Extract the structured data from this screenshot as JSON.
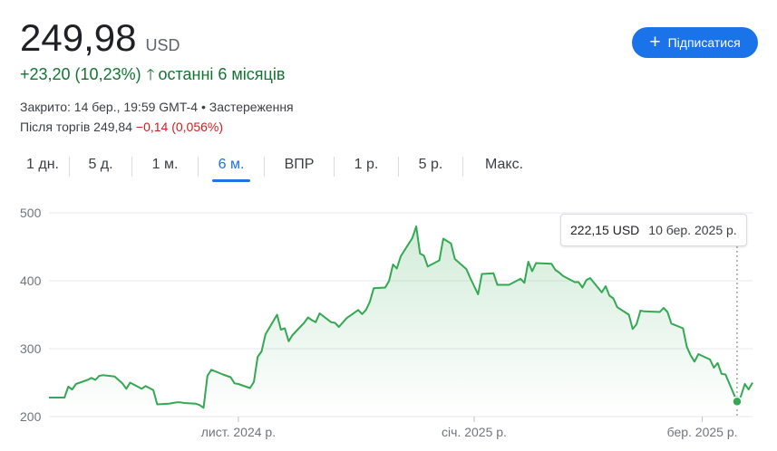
{
  "quote": {
    "price": "249,98",
    "currency": "USD",
    "change": "+23,20 (10,23%)",
    "period": "останні 6 місяців",
    "closed": "Закрито: 14 бер., 19:59 GMT-4 • Застереження",
    "after_hours_label": "Після торгів 249,84",
    "after_hours_change": "−0,14 (0,056%)"
  },
  "subscribe": {
    "label": "Підписатися",
    "icon": "plus-icon"
  },
  "tabs": [
    {
      "label": "1 дн.",
      "active": false
    },
    {
      "label": "5 д.",
      "active": false
    },
    {
      "label": "1 м.",
      "active": false
    },
    {
      "label": "6 м.",
      "active": true
    },
    {
      "label": "ВПР",
      "active": false
    },
    {
      "label": "1 р.",
      "active": false
    },
    {
      "label": "5 р.",
      "active": false
    },
    {
      "label": "Макс.",
      "active": false
    }
  ],
  "tooltip": {
    "price": "222,15 USD",
    "date": "10 бер. 2025 р."
  },
  "colors": {
    "positive": "#137333",
    "negative": "#c5221f",
    "line": "#34a853",
    "accent": "#1a73e8"
  },
  "chart_data": {
    "type": "area",
    "x_start": "2024-09-13",
    "x_end": "2025-03-14",
    "x_ticks": [
      {
        "date": "2024-11-01",
        "label": "лист. 2024 р."
      },
      {
        "date": "2025-01-01",
        "label": "січ. 2025 р."
      },
      {
        "date": "2025-03-01",
        "label": "бер. 2025 р."
      }
    ],
    "y_ticks": [
      200,
      300,
      400,
      500
    ],
    "ylim": [
      200,
      520
    ],
    "grid": true,
    "highlight": {
      "date": "2025-03-10",
      "value": 222.15
    },
    "series": [
      {
        "points": [
          [
            "2024-09-13",
            228
          ],
          [
            "2024-09-16",
            228
          ],
          [
            "2024-09-17",
            228
          ],
          [
            "2024-09-18",
            244
          ],
          [
            "2024-09-19",
            240
          ],
          [
            "2024-09-20",
            248
          ],
          [
            "2024-09-23",
            254
          ],
          [
            "2024-09-24",
            257
          ],
          [
            "2024-09-25",
            254
          ],
          [
            "2024-09-26",
            260
          ],
          [
            "2024-09-27",
            261
          ],
          [
            "2024-09-30",
            259
          ],
          [
            "2024-10-01",
            254
          ],
          [
            "2024-10-02",
            249
          ],
          [
            "2024-10-03",
            241
          ],
          [
            "2024-10-04",
            250
          ],
          [
            "2024-10-07",
            241
          ],
          [
            "2024-10-08",
            245
          ],
          [
            "2024-10-09",
            242
          ],
          [
            "2024-10-10",
            239
          ],
          [
            "2024-10-11",
            218
          ],
          [
            "2024-10-14",
            219
          ],
          [
            "2024-10-15",
            220
          ],
          [
            "2024-10-16",
            221
          ],
          [
            "2024-10-17",
            221
          ],
          [
            "2024-10-18",
            220
          ],
          [
            "2024-10-21",
            219
          ],
          [
            "2024-10-22",
            217
          ],
          [
            "2024-10-23",
            213
          ],
          [
            "2024-10-24",
            260
          ],
          [
            "2024-10-25",
            269
          ],
          [
            "2024-10-28",
            262
          ],
          [
            "2024-10-29",
            260
          ],
          [
            "2024-10-30",
            258
          ],
          [
            "2024-10-31",
            249
          ],
          [
            "2024-11-01",
            248
          ],
          [
            "2024-11-04",
            242
          ],
          [
            "2024-11-05",
            251
          ],
          [
            "2024-11-06",
            288
          ],
          [
            "2024-11-07",
            296
          ],
          [
            "2024-11-08",
            321
          ],
          [
            "2024-11-11",
            350
          ],
          [
            "2024-11-12",
            328
          ],
          [
            "2024-11-13",
            330
          ],
          [
            "2024-11-14",
            311
          ],
          [
            "2024-11-15",
            320
          ],
          [
            "2024-11-18",
            338
          ],
          [
            "2024-11-19",
            346
          ],
          [
            "2024-11-20",
            342
          ],
          [
            "2024-11-21",
            339
          ],
          [
            "2024-11-22",
            352
          ],
          [
            "2024-11-25",
            339
          ],
          [
            "2024-11-26",
            338
          ],
          [
            "2024-11-27",
            332
          ],
          [
            "2024-11-29",
            345
          ],
          [
            "2024-12-02",
            357
          ],
          [
            "2024-12-03",
            351
          ],
          [
            "2024-12-04",
            357
          ],
          [
            "2024-12-05",
            369
          ],
          [
            "2024-12-06",
            389
          ],
          [
            "2024-12-09",
            390
          ],
          [
            "2024-12-10",
            400
          ],
          [
            "2024-12-11",
            424
          ],
          [
            "2024-12-12",
            418
          ],
          [
            "2024-12-13",
            436
          ],
          [
            "2024-12-16",
            463
          ],
          [
            "2024-12-17",
            480
          ],
          [
            "2024-12-18",
            440
          ],
          [
            "2024-12-19",
            437
          ],
          [
            "2024-12-20",
            421
          ],
          [
            "2024-12-23",
            430
          ],
          [
            "2024-12-24",
            462
          ],
          [
            "2024-12-26",
            455
          ],
          [
            "2024-12-27",
            432
          ],
          [
            "2024-12-30",
            417
          ],
          [
            "2024-12-31",
            404
          ],
          [
            "2025-01-02",
            380
          ],
          [
            "2025-01-03",
            410
          ],
          [
            "2025-01-06",
            411
          ],
          [
            "2025-01-07",
            394
          ],
          [
            "2025-01-08",
            394
          ],
          [
            "2025-01-10",
            394
          ],
          [
            "2025-01-13",
            403
          ],
          [
            "2025-01-14",
            397
          ],
          [
            "2025-01-15",
            428
          ],
          [
            "2025-01-16",
            414
          ],
          [
            "2025-01-17",
            426
          ],
          [
            "2025-01-21",
            425
          ],
          [
            "2025-01-22",
            416
          ],
          [
            "2025-01-23",
            412
          ],
          [
            "2025-01-24",
            407
          ],
          [
            "2025-01-27",
            398
          ],
          [
            "2025-01-28",
            398
          ],
          [
            "2025-01-29",
            390
          ],
          [
            "2025-01-30",
            401
          ],
          [
            "2025-01-31",
            404
          ],
          [
            "2025-02-03",
            383
          ],
          [
            "2025-02-04",
            392
          ],
          [
            "2025-02-05",
            378
          ],
          [
            "2025-02-06",
            374
          ],
          [
            "2025-02-07",
            361
          ],
          [
            "2025-02-10",
            350
          ],
          [
            "2025-02-11",
            329
          ],
          [
            "2025-02-12",
            336
          ],
          [
            "2025-02-13",
            356
          ],
          [
            "2025-02-14",
            355
          ],
          [
            "2025-02-18",
            354
          ],
          [
            "2025-02-19",
            360
          ],
          [
            "2025-02-20",
            354
          ],
          [
            "2025-02-21",
            337
          ],
          [
            "2025-02-24",
            330
          ],
          [
            "2025-02-25",
            303
          ],
          [
            "2025-02-26",
            290
          ],
          [
            "2025-02-27",
            281
          ],
          [
            "2025-02-28",
            292
          ],
          [
            "2025-03-03",
            284
          ],
          [
            "2025-03-04",
            272
          ],
          [
            "2025-03-05",
            279
          ],
          [
            "2025-03-06",
            263
          ],
          [
            "2025-03-07",
            262
          ],
          [
            "2025-03-10",
            222.15
          ],
          [
            "2025-03-11",
            230
          ],
          [
            "2025-03-12",
            248
          ],
          [
            "2025-03-13",
            240
          ],
          [
            "2025-03-14",
            249.98
          ]
        ]
      }
    ]
  }
}
